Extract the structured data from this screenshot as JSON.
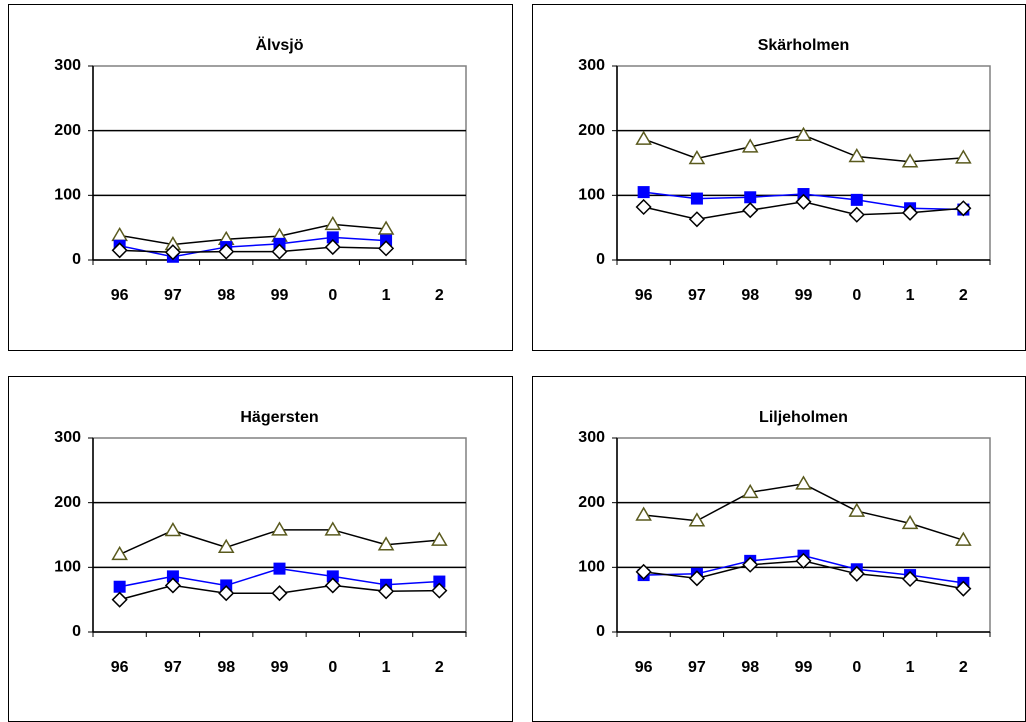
{
  "chart_data": [
    {
      "type": "line",
      "title": "Älvsjö",
      "categories": [
        "96",
        "97",
        "98",
        "99",
        "0",
        "1",
        "2"
      ],
      "ylim": [
        0,
        300
      ],
      "yticks": [
        0,
        100,
        200,
        300
      ],
      "grid": true,
      "series": [
        {
          "color": "#000000",
          "marker": "triangle",
          "marker_color": "#5a5a1e",
          "values": [
            38,
            24,
            32,
            37,
            55,
            48,
            null
          ]
        },
        {
          "color": "#0000ff",
          "marker": "square",
          "marker_color": "#0000ff",
          "values": [
            22,
            5,
            20,
            25,
            35,
            30,
            null
          ]
        },
        {
          "color": "#000000",
          "marker": "diamond",
          "marker_color": "#000000",
          "values": [
            15,
            12,
            13,
            13,
            20,
            18,
            null
          ]
        }
      ]
    },
    {
      "type": "line",
      "title": "Skärholmen",
      "categories": [
        "96",
        "97",
        "98",
        "99",
        "0",
        "1",
        "2"
      ],
      "ylim": [
        0,
        300
      ],
      "yticks": [
        0,
        100,
        200,
        300
      ],
      "grid": true,
      "series": [
        {
          "color": "#000000",
          "marker": "triangle",
          "marker_color": "#5a5a1e",
          "values": [
            187,
            157,
            175,
            193,
            160,
            152,
            158
          ]
        },
        {
          "color": "#0000ff",
          "marker": "square",
          "marker_color": "#0000ff",
          "values": [
            105,
            95,
            97,
            102,
            93,
            80,
            78
          ]
        },
        {
          "color": "#000000",
          "marker": "diamond",
          "marker_color": "#000000",
          "values": [
            82,
            63,
            77,
            90,
            70,
            73,
            80
          ]
        }
      ]
    },
    {
      "type": "line",
      "title": "Hägersten",
      "categories": [
        "96",
        "97",
        "98",
        "99",
        "0",
        "1",
        "2"
      ],
      "ylim": [
        0,
        300
      ],
      "yticks": [
        0,
        100,
        200,
        300
      ],
      "grid": true,
      "series": [
        {
          "color": "#000000",
          "marker": "triangle",
          "marker_color": "#5a5a1e",
          "values": [
            120,
            157,
            131,
            158,
            158,
            135,
            142
          ]
        },
        {
          "color": "#0000ff",
          "marker": "square",
          "marker_color": "#0000ff",
          "values": [
            70,
            86,
            72,
            98,
            86,
            73,
            78
          ]
        },
        {
          "color": "#000000",
          "marker": "diamond",
          "marker_color": "#000000",
          "values": [
            50,
            72,
            60,
            60,
            72,
            63,
            64
          ]
        }
      ]
    },
    {
      "type": "line",
      "title": "Liljeholmen",
      "categories": [
        "96",
        "97",
        "98",
        "99",
        "0",
        "1",
        "2"
      ],
      "ylim": [
        0,
        300
      ],
      "yticks": [
        0,
        100,
        200,
        300
      ],
      "grid": true,
      "series": [
        {
          "color": "#000000",
          "marker": "triangle",
          "marker_color": "#5a5a1e",
          "values": [
            181,
            172,
            216,
            229,
            187,
            168,
            142
          ]
        },
        {
          "color": "#0000ff",
          "marker": "square",
          "marker_color": "#0000ff",
          "values": [
            88,
            90,
            110,
            118,
            97,
            88,
            76
          ]
        },
        {
          "color": "#000000",
          "marker": "diamond",
          "marker_color": "#000000",
          "values": [
            93,
            83,
            104,
            110,
            90,
            82,
            67
          ]
        }
      ]
    }
  ]
}
